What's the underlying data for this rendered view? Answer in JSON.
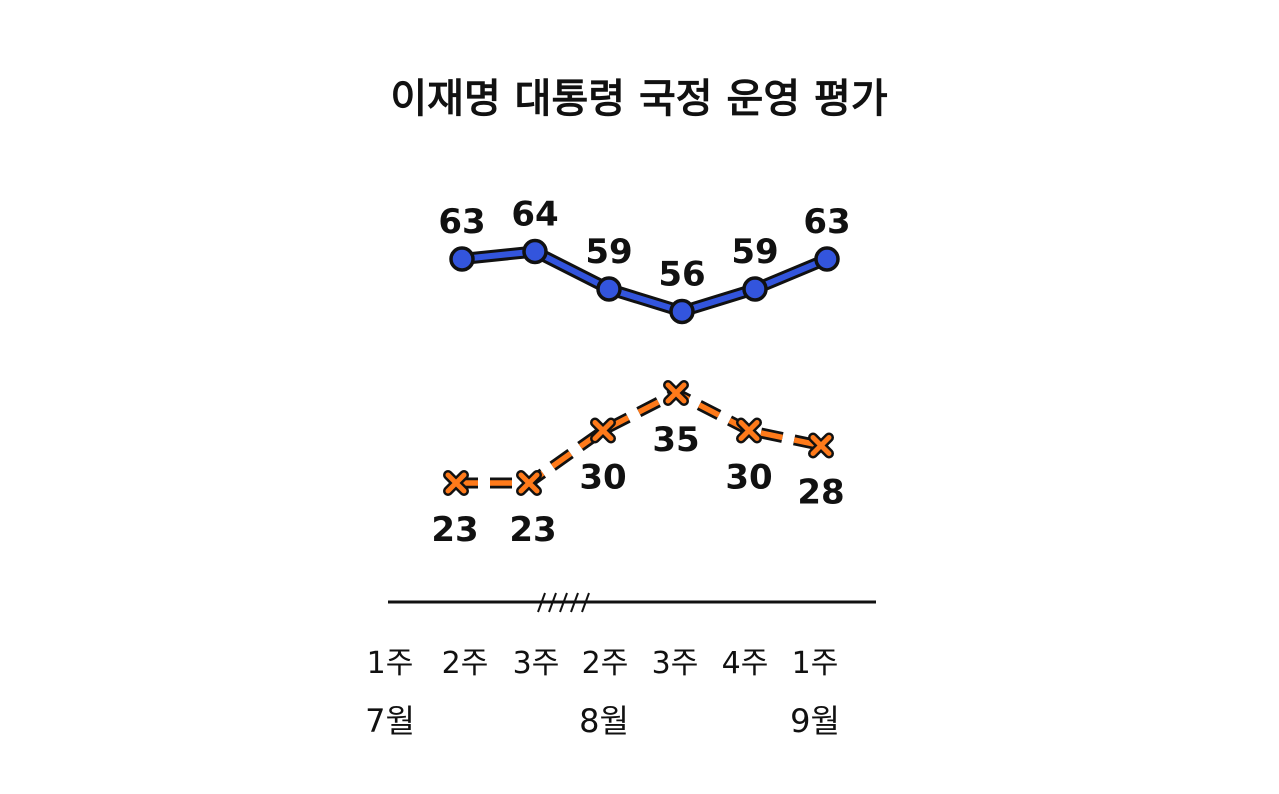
{
  "chart_data": {
    "type": "line",
    "title": "이재명 대통령 국정 운영 평가",
    "x": [
      "1주",
      "2주",
      "3주",
      "2주",
      "3주",
      "4주",
      "1주"
    ],
    "month_labels": [
      "7월",
      "8월",
      "9월"
    ],
    "axis_break": true,
    "grid": false,
    "series": [
      {
        "marker": "circle",
        "line_style": "solid",
        "color": "#3355dd",
        "values": [
          63,
          null,
          64,
          59,
          56,
          59,
          63
        ]
      },
      {
        "marker": "x",
        "line_style": "dashed",
        "color": "#ff7a1a",
        "values": [
          23,
          null,
          23,
          30,
          35,
          30,
          28
        ]
      }
    ]
  }
}
